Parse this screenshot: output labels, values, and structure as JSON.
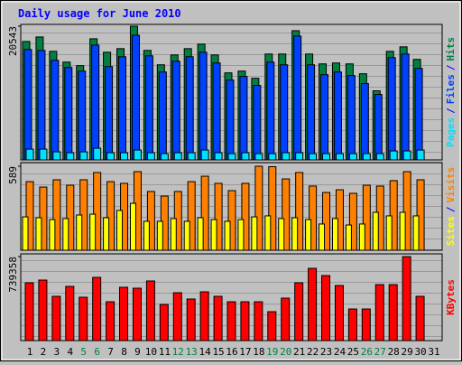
{
  "chart_data": [
    {
      "type": "bar",
      "title": "Daily usage for June 2010",
      "legend_separator": "/",
      "ylim": [
        0,
        20543
      ],
      "yticks": [
        20543
      ],
      "series": [
        {
          "name": "Hits",
          "color": "#008040",
          "values": [
            18200,
            18888,
            16683,
            15028,
            14477,
            18613,
            16545,
            17096,
            20543,
            16821,
            14615,
            16131,
            17096,
            17786,
            16131,
            13374,
            13649,
            12546,
            16269,
            16269,
            19854,
            16269,
            14752,
            14890,
            14752,
            13236,
            10616,
            16683,
            17372,
            15442,
            null
          ]
        },
        {
          "name": "Files",
          "color": "#0040ff",
          "values": [
            16958,
            16820,
            15304,
            14201,
            13649,
            17648,
            14339,
            15855,
            19164,
            15993,
            13511,
            15166,
            15855,
            16545,
            14890,
            12271,
            12822,
            11443,
            15028,
            14614,
            19026,
            14614,
            13098,
            13511,
            12960,
            11719,
            10065,
            15717,
            16269,
            14063,
            null
          ]
        },
        {
          "name": "Pages",
          "color": "#00e0ff",
          "values": [
            1654,
            1654,
            1241,
            1103,
            1241,
            1792,
            1103,
            1103,
            1516,
            1103,
            965,
            1103,
            1103,
            1516,
            1103,
            965,
            1103,
            965,
            965,
            1103,
            1103,
            965,
            965,
            965,
            965,
            965,
            965,
            1379,
            1379,
            1516,
            null
          ]
        }
      ]
    },
    {
      "type": "bar",
      "ylim": [
        0,
        589
      ],
      "yticks": [
        589
      ],
      "series": [
        {
          "name": "Visits",
          "color": "#ff8000",
          "values": [
            481,
            443,
            494,
            456,
            494,
            545,
            481,
            469,
            551,
            412,
            380,
            412,
            481,
            519,
            469,
            418,
            469,
            589,
            586,
            500,
            545,
            450,
            405,
            424,
            399,
            456,
            450,
            488,
            551,
            494,
            null
          ]
        },
        {
          "name": "Sites",
          "color": "#ffff00",
          "values": [
            234,
            228,
            215,
            222,
            247,
            253,
            228,
            279,
            329,
            203,
            203,
            222,
            203,
            228,
            215,
            203,
            215,
            234,
            241,
            222,
            228,
            215,
            184,
            222,
            177,
            184,
            266,
            241,
            266,
            241,
            null
          ]
        }
      ]
    },
    {
      "type": "bar",
      "ylim": [
        0,
        739358
      ],
      "yticks": [
        739358
      ],
      "categories": [
        "1",
        "2",
        "3",
        "4",
        "5",
        "6",
        "7",
        "8",
        "9",
        "10",
        "11",
        "12",
        "13",
        "14",
        "15",
        "16",
        "17",
        "18",
        "19",
        "20",
        "21",
        "22",
        "23",
        "24",
        "25",
        "26",
        "27",
        "28",
        "29",
        "30",
        "31"
      ],
      "category_colors": [
        "#000000",
        "#000000",
        "#000000",
        "#000000",
        "#008040",
        "#008040",
        "#000000",
        "#000000",
        "#000000",
        "#000000",
        "#000000",
        "#008040",
        "#008040",
        "#000000",
        "#000000",
        "#000000",
        "#000000",
        "#000000",
        "#008040",
        "#008040",
        "#000000",
        "#000000",
        "#000000",
        "#000000",
        "#000000",
        "#008040",
        "#008040",
        "#000000",
        "#000000",
        "#000000",
        "#000000"
      ],
      "series": [
        {
          "name": "KBytes",
          "color": "#ff0000",
          "values": [
            508800,
            532650,
            389550,
            477000,
            381600,
            556500,
            341850,
            469050,
            461100,
            524700,
            318000,
            421350,
            365700,
            429300,
            389550,
            341850,
            341850,
            341850,
            254400,
            373650,
            508800,
            636000,
            572400,
            484950,
            278250,
            278250,
            492900,
            492900,
            739358,
            389550,
            null
          ]
        }
      ]
    }
  ]
}
